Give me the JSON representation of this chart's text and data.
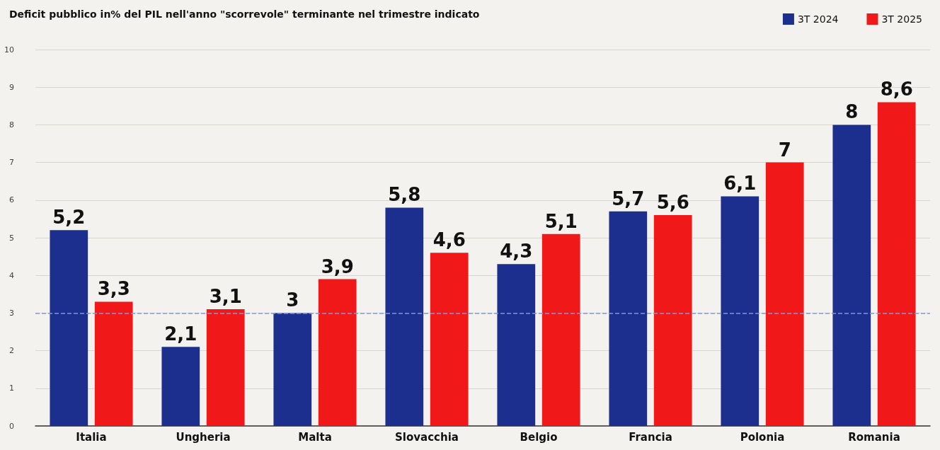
{
  "chart_data": {
    "type": "bar",
    "title": "Deficit pubblico in% del PIL nell'anno \"scorrevole\" terminante nel trimestre indicato",
    "categories": [
      "Italia",
      "Ungheria",
      "Malta",
      "Slovacchia",
      "Belgio",
      "Francia",
      "Polonia",
      "Romania"
    ],
    "series": [
      {
        "name": "3T 2024",
        "color": "#1c2f8f",
        "values": [
          5.2,
          2.1,
          3,
          5.8,
          4.3,
          5.7,
          6.1,
          8
        ],
        "value_labels": [
          "5,2",
          "2,1",
          "3",
          "5,8",
          "4,3",
          "5,7",
          "6,1",
          "8"
        ]
      },
      {
        "name": "3T 2025",
        "color": "#f01818",
        "values": [
          3.3,
          3.1,
          3.9,
          4.6,
          5.1,
          5.6,
          7,
          8.6
        ],
        "value_labels": [
          "3,3",
          "3,1",
          "3,9",
          "4,6",
          "5,1",
          "5,6",
          "7",
          "8,6"
        ]
      }
    ],
    "ylim": [
      0,
      10
    ],
    "yticks": [
      0,
      1,
      2,
      3,
      4,
      5,
      6,
      7,
      8,
      9,
      10
    ],
    "grid": "y",
    "legend": "top right",
    "ref_lines": [
      {
        "axis": "y",
        "value": 3,
        "color": "#7f9ad6",
        "line_style": "dashed"
      }
    ]
  }
}
